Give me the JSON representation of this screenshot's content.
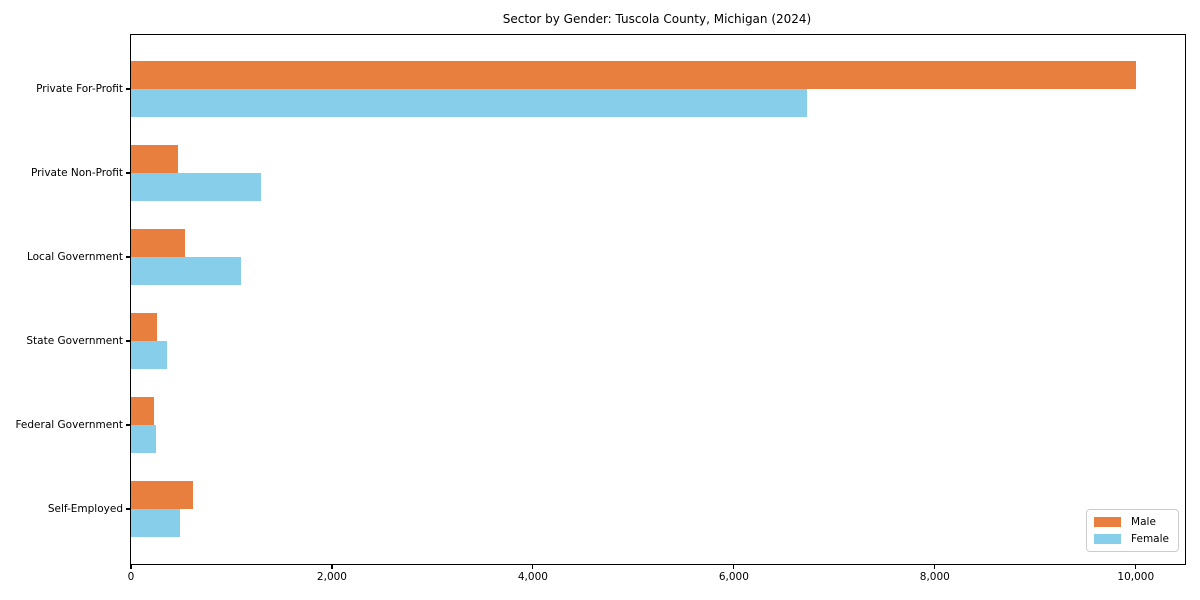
{
  "page": {
    "background": "#ffffff"
  },
  "chart_data": {
    "type": "bar",
    "orientation": "horizontal",
    "title": "Sector by Gender: Tuscola County, Michigan (2024)",
    "categories": [
      "Private For-Profit",
      "Private Non-Profit",
      "Local Government",
      "State Government",
      "Federal Government",
      "Self-Employed"
    ],
    "series": [
      {
        "name": "Male",
        "color": "#e97f3f",
        "values": [
          10000,
          470,
          540,
          260,
          230,
          620
        ]
      },
      {
        "name": "Female",
        "color": "#87ceeb",
        "values": [
          6730,
          1290,
          1090,
          360,
          250,
          490
        ]
      }
    ],
    "xlim": [
      0,
      10490
    ],
    "xticks": [
      0,
      2000,
      4000,
      6000,
      8000,
      10000
    ],
    "xtick_labels": [
      "0",
      "2,000",
      "4,000",
      "6,000",
      "8,000",
      "10,000"
    ],
    "xlabel": "",
    "ylabel": "",
    "grid": false,
    "legend": {
      "position": "lower-right",
      "labels": [
        "Male",
        "Female"
      ]
    },
    "axis_color": "#000000",
    "text_color": "#000000"
  }
}
